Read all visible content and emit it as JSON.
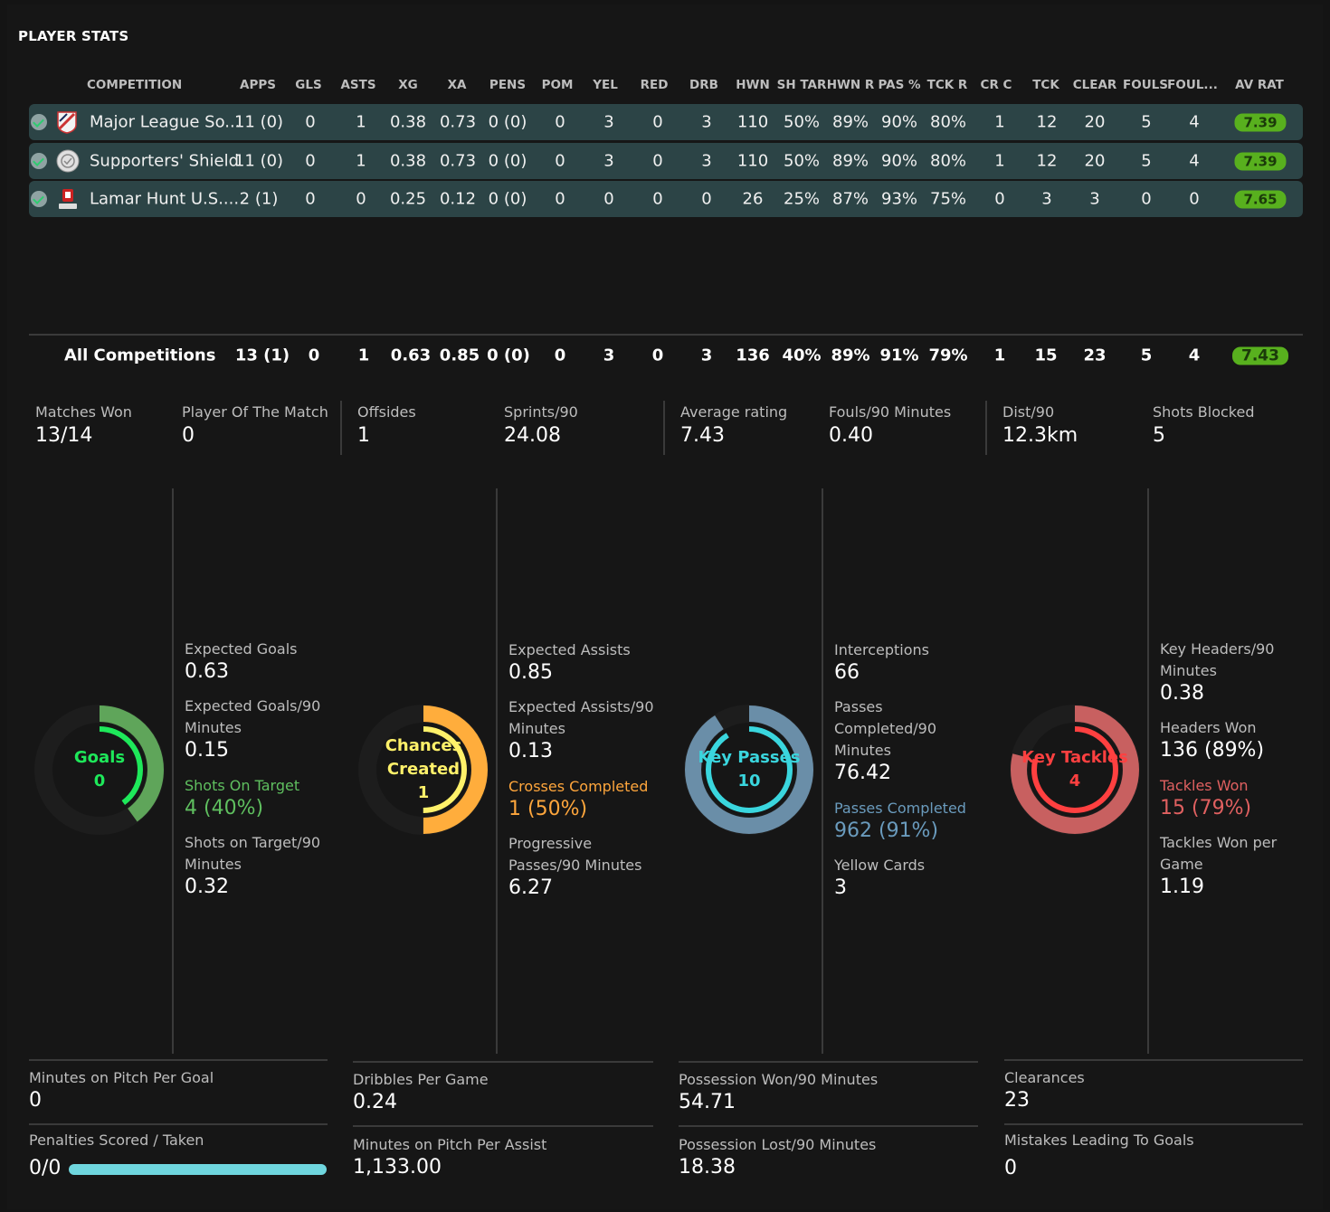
{
  "title": "PLAYER STATS",
  "table": {
    "headers": [
      "COMPETITION",
      "APPS",
      "GLS",
      "ASTS",
      "XG",
      "XA",
      "PENS",
      "POM",
      "YEL",
      "RED",
      "DRB",
      "HWN",
      "SH TAR",
      "HWN R",
      "PAS %",
      "TCK R",
      "CR C",
      "TCK",
      "CLEAR",
      "FOULS",
      "FOUL...",
      "AV RAT"
    ],
    "rows": [
      {
        "crest": "mls-crest-icon",
        "name": "Major League So...",
        "cells": [
          "11 (0)",
          "0",
          "1",
          "0.38",
          "0.73",
          "0 (0)",
          "0",
          "3",
          "0",
          "3",
          "110",
          "50%",
          "89%",
          "90%",
          "80%",
          "1",
          "12",
          "20",
          "5",
          "4"
        ],
        "rating": "7.39"
      },
      {
        "crest": "supporters-shield-crest-icon",
        "name": "Supporters' Shield",
        "cells": [
          "11 (0)",
          "0",
          "1",
          "0.38",
          "0.73",
          "0 (0)",
          "0",
          "3",
          "0",
          "3",
          "110",
          "50%",
          "89%",
          "90%",
          "80%",
          "1",
          "12",
          "20",
          "5",
          "4"
        ],
        "rating": "7.39"
      },
      {
        "crest": "us-open-cup-crest-icon",
        "name": "Lamar Hunt U.S....",
        "cells": [
          "2 (1)",
          "0",
          "0",
          "0.25",
          "0.12",
          "0 (0)",
          "0",
          "0",
          "0",
          "0",
          "26",
          "25%",
          "87%",
          "93%",
          "75%",
          "0",
          "3",
          "3",
          "0",
          "0"
        ],
        "rating": "7.65"
      }
    ],
    "total": {
      "name": "All Competitions",
      "cells": [
        "13 (1)",
        "0",
        "1",
        "0.63",
        "0.85",
        "0 (0)",
        "0",
        "3",
        "0",
        "3",
        "136",
        "40%",
        "89%",
        "91%",
        "79%",
        "1",
        "15",
        "23",
        "5",
        "4"
      ],
      "rating": "7.43"
    }
  },
  "summary": [
    {
      "label": "Matches Won",
      "value": "13/14"
    },
    {
      "label": "Player Of The Match",
      "value": "0"
    },
    {
      "label": "Offsides",
      "value": "1"
    },
    {
      "label": "Sprints/90",
      "value": "24.08"
    },
    {
      "label": "Average rating",
      "value": "7.43"
    },
    {
      "label": "Fouls/90 Minutes",
      "value": "0.40"
    },
    {
      "label": "Dist/90",
      "value": "12.3km"
    },
    {
      "label": "Shots Blocked",
      "value": "5"
    }
  ],
  "rings": [
    {
      "name": "goals",
      "line1": "Goals",
      "line2": "",
      "value": "0",
      "color": "#1ee85a",
      "ring": "#5fa55a",
      "fraction": 0.4
    },
    {
      "name": "chances-created",
      "line1": "Chances",
      "line2": "Created",
      "value": "1",
      "color": "#fff16a",
      "ring": "#ffad3c",
      "fraction": 0.5
    },
    {
      "name": "key-passes",
      "line1": "Key Passes",
      "line2": "",
      "value": "10",
      "color": "#3ad6de",
      "ring": "#6a8ea8",
      "fraction": 0.91
    },
    {
      "name": "key-tackles",
      "line1": "Key Tackles",
      "line2": "",
      "value": "4",
      "color": "#ff4040",
      "ring": "#c86060",
      "fraction": 0.79
    }
  ],
  "col1": {
    "xg_label": "Expected Goals",
    "xg": "0.63",
    "xg90_label": "Expected Goals/90 Minutes",
    "xg90": "0.15",
    "sot_label": "Shots On Target",
    "sot": "4 (40%)",
    "sot90_label": "Shots on Target/90 Minutes",
    "sot90": "0.32"
  },
  "col2": {
    "xa_label": "Expected Assists",
    "xa": "0.85",
    "xa90_label": "Expected Assists/90 Minutes",
    "xa90": "0.13",
    "cc_label": "Crosses Completed",
    "cc": "1 (50%)",
    "pp_label": "Progressive Passes/90 Minutes",
    "pp": "6.27"
  },
  "col3": {
    "int_label": "Interceptions",
    "int": "66",
    "pc90_label": "Passes Completed/90 Minutes",
    "pc90": "76.42",
    "pc_label": "Passes Completed",
    "pc": "962 (91%)",
    "yc_label": "Yellow Cards",
    "yc": "3"
  },
  "col4": {
    "kh_label": "Key Headers/90 Minutes",
    "kh": "0.38",
    "hw_label": "Headers Won",
    "hw": "136 (89%)",
    "tw_label": "Tackles Won",
    "tw": "15 (79%)",
    "twg_label": "Tackles Won per Game",
    "twg": "1.19"
  },
  "bottom": {
    "mpg_label": "Minutes on Pitch Per Goal",
    "mpg": "0",
    "pen_label": "Penalties Scored / Taken",
    "pen": "0/0",
    "pen_fraction": 1.0,
    "dpg_label": "Dribbles Per Game",
    "dpg": "0.24",
    "mpa_label": "Minutes on Pitch Per Assist",
    "mpa": "1,133.00",
    "pw_label": "Possession Won/90 Minutes",
    "pw": "54.71",
    "pl_label": "Possession Lost/90 Minutes",
    "pl": "18.38",
    "clr_label": "Clearances",
    "clr": "23",
    "mlg_label": "Mistakes Leading To Goals",
    "mlg": "0"
  }
}
